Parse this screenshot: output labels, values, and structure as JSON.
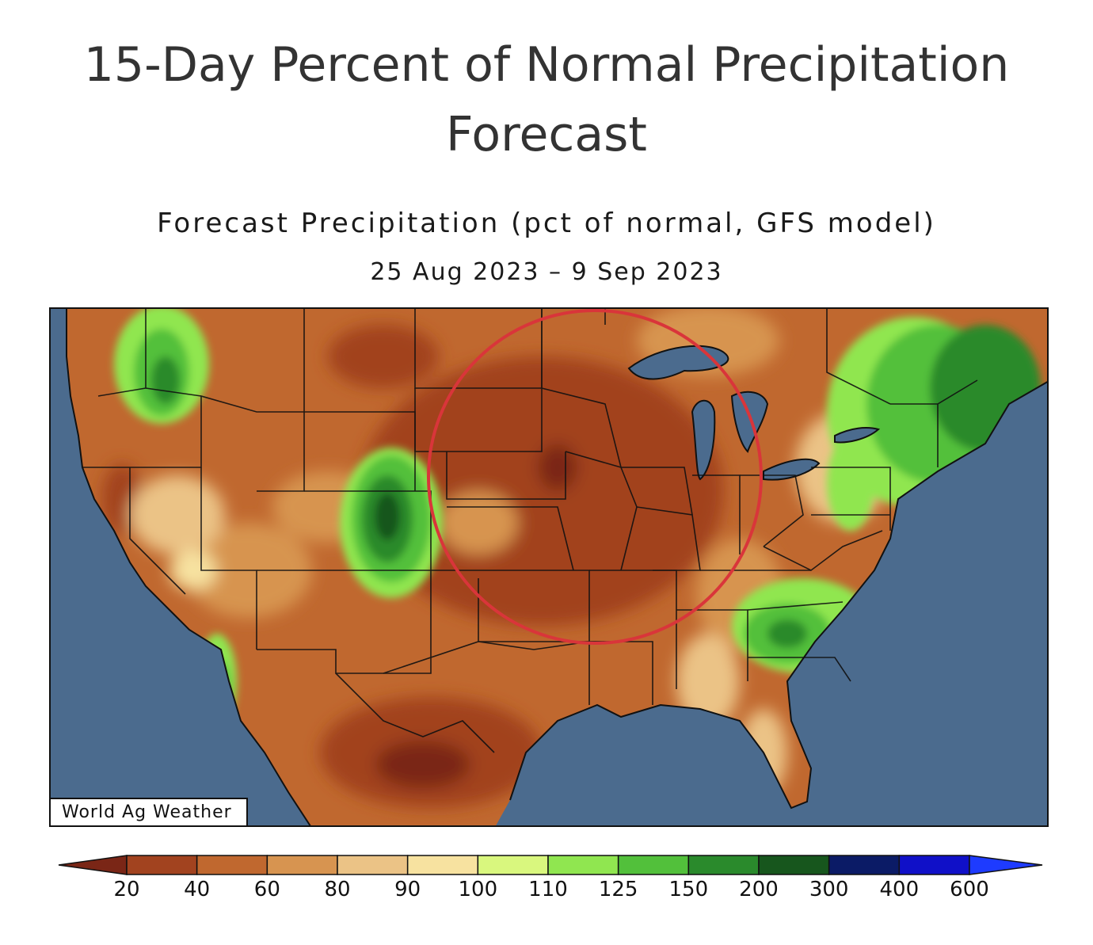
{
  "header": {
    "title_line1": "15-Day Percent of Normal Precipitation",
    "title_line2": "Forecast"
  },
  "map": {
    "title": "Forecast Precipitation (pct of normal, GFS model)",
    "dates": "25 Aug 2023 – 9 Sep 2023",
    "watermark": "World Ag Weather",
    "ocean_color": "#4b6b8e",
    "highlight_circle_color": "#d9353a",
    "highlight_region": "Upper Midwest / Central Plains"
  },
  "legend": {
    "ticks": [
      "20",
      "40",
      "60",
      "80",
      "90",
      "100",
      "110",
      "125",
      "150",
      "200",
      "300",
      "400",
      "600"
    ],
    "colors": [
      "#7a2616",
      "#a2431f",
      "#c0682f",
      "#d79450",
      "#ebc386",
      "#f7e2a0",
      "#d9f77e",
      "#90e650",
      "#52c03b",
      "#2a8a2c",
      "#17561d",
      "#0b1b66",
      "#1010c8",
      "#1e3bff"
    ]
  }
}
